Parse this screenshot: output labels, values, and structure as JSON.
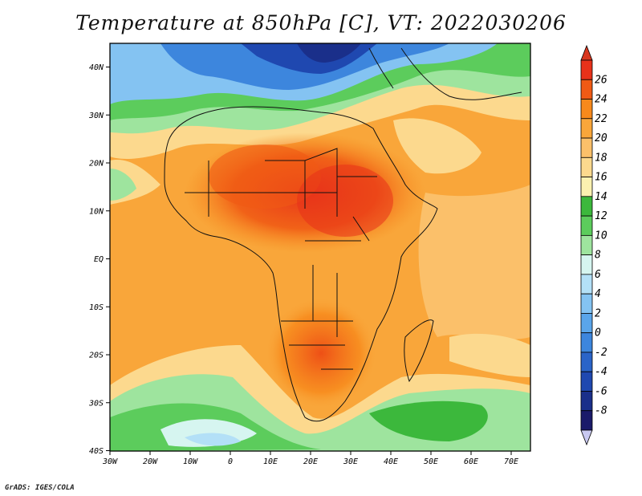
{
  "title": "Temperature at 850hPa [C], VT: 2022030206",
  "credit": "GrADS: IGES/COLA",
  "map": {
    "lon_ticks": [
      "30W",
      "20W",
      "10W",
      "0",
      "10E",
      "20E",
      "30E",
      "40E",
      "50E",
      "60E",
      "70E"
    ],
    "lat_ticks": [
      "40N",
      "30N",
      "20N",
      "10N",
      "EQ",
      "10S",
      "20S",
      "30S",
      "40S"
    ]
  },
  "colorbar": {
    "labels": [
      "26",
      "24",
      "22",
      "20",
      "18",
      "16",
      "14",
      "12",
      "10",
      "8",
      "6",
      "4",
      "2",
      "0",
      "-2",
      "-4",
      "-6",
      "-8"
    ],
    "colors": [
      "#e8321a",
      "#f05a14",
      "#f7891b",
      "#f9a63a",
      "#fbc06a",
      "#fcd98e",
      "#fbf1b0",
      "#3cb83c",
      "#5ccc5c",
      "#9ee49e",
      "#d6f5f0",
      "#b3e0f7",
      "#84c3f2",
      "#5aa5ea",
      "#3d86dd",
      "#2a64c8",
      "#1f48b0",
      "#1a2f8a",
      "#1a1a6a"
    ],
    "under_color": "#c8c8f0",
    "over_color": "#d8361e"
  }
}
